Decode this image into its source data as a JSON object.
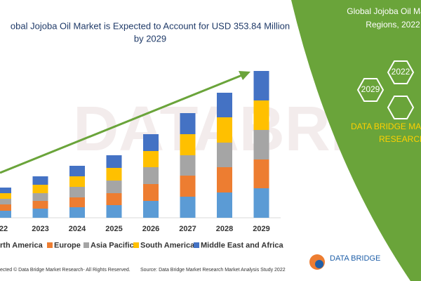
{
  "chart_data": {
    "type": "bar",
    "stacked": true,
    "title": [
      "obal Jojoba Oil Market is Expected to Account for USD 353.84 Million",
      "by 2029"
    ],
    "categories": [
      "22",
      "2023",
      "2024",
      "2025",
      "2026",
      "2027",
      "2028",
      "2029"
    ],
    "series": [
      {
        "name": "rth America",
        "color": "#5b9bd5",
        "values": [
          10,
          13,
          15,
          18,
          24,
          30,
          36,
          42
        ]
      },
      {
        "name": "Europe",
        "color": "#ed7d31",
        "values": [
          9,
          11,
          14,
          17,
          24,
          30,
          36,
          41
        ]
      },
      {
        "name": "Asia Pacific",
        "color": "#a5a5a5",
        "values": [
          8,
          11,
          15,
          18,
          24,
          29,
          35,
          42
        ]
      },
      {
        "name": "South America",
        "color": "#ffc000",
        "values": [
          8,
          12,
          15,
          18,
          23,
          30,
          36,
          42
        ]
      },
      {
        "name": "Middle East and Africa",
        "color": "#4472c4",
        "values": [
          8,
          12,
          15,
          18,
          24,
          30,
          35,
          42
        ]
      }
    ],
    "footer": [
      "ected © Data Bridge Market Research- All Rights Reserved.",
      "Source: Data Bridge Market Research Market Analysis Study 2022"
    ]
  },
  "panel": {
    "heading": [
      "Global Jojoba Oil Ma",
      "Regions, 2022"
    ],
    "hex_labels": [
      "2022",
      "2029"
    ],
    "brand": [
      "DATA BRIDGE MA",
      "RESEARCH"
    ],
    "logo": "DATA BRIDGE"
  }
}
